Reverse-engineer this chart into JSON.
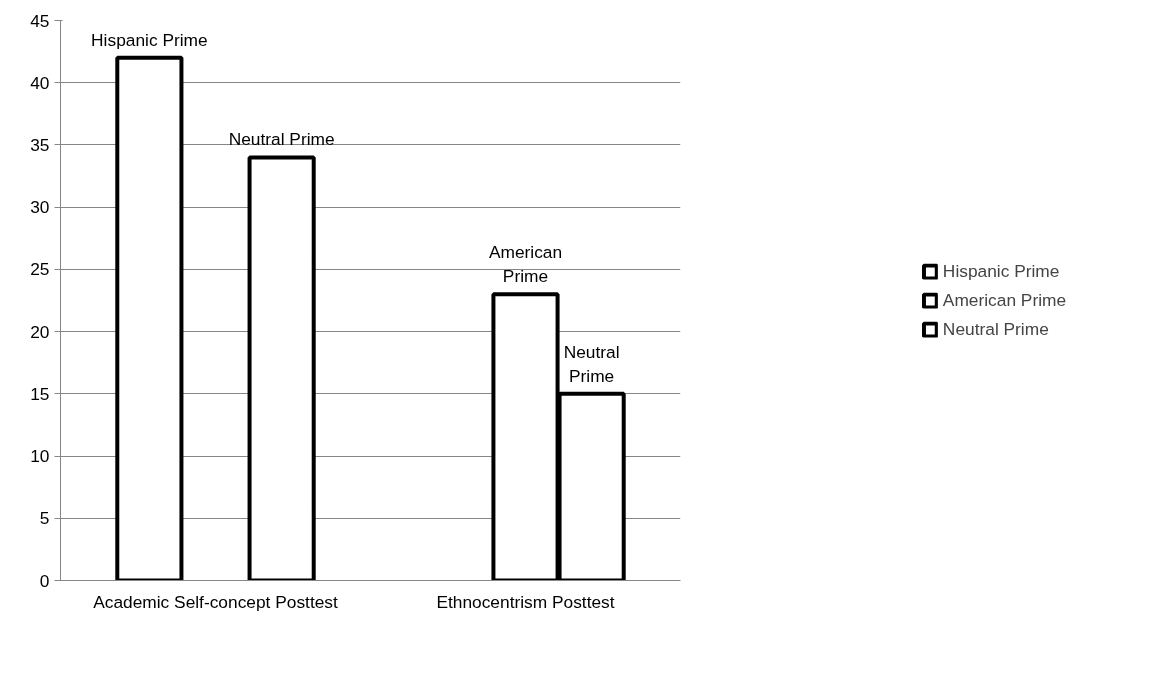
{
  "chart_data": {
    "type": "bar",
    "categories": [
      "Academic Self-concept Posttest",
      "Ethnocentrism Posttest"
    ],
    "series": [
      {
        "name": "Hispanic Prime",
        "color": "#ffffff",
        "values": [
          42,
          null
        ],
        "value_labels": [
          "Hispanic Prime",
          null
        ]
      },
      {
        "name": "American Prime",
        "color": "#ffffff",
        "values": [
          null,
          23
        ],
        "value_labels": [
          null,
          "American Prime"
        ]
      },
      {
        "name": "Neutral Prime",
        "color": "#ffffff",
        "values": [
          34,
          15
        ],
        "value_labels": [
          "Neutral Prime",
          "Neutral Prime"
        ]
      }
    ],
    "ylim": [
      0,
      45
    ],
    "yticks": [
      0,
      5,
      10,
      15,
      20,
      25,
      30,
      35,
      40,
      45
    ],
    "grid": "y",
    "legend": "right"
  }
}
